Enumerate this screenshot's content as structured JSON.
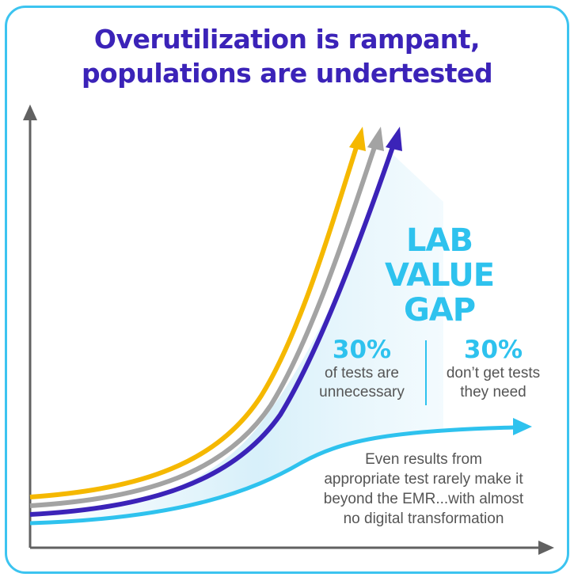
{
  "title": {
    "line1": "Overutilization is rampant,",
    "line2": "populations are undertested"
  },
  "gap_label": {
    "line1": "LAB",
    "line2": "VALUE",
    "line3": "GAP"
  },
  "stats": [
    {
      "percent": "30%",
      "line1": "of tests are",
      "line2": "unnecessary"
    },
    {
      "percent": "30%",
      "line1": "don’t get tests",
      "line2": "they need"
    }
  ],
  "note": {
    "line1": "Even results from",
    "line2": "appropriate test rarely make it",
    "line3": "beyond the EMR...with almost",
    "line4": "no digital transformation"
  },
  "colors": {
    "border": "#3cc4f0",
    "title": "#3b23b8",
    "accent_cyan": "#2ec2ee",
    "curve_yellow": "#f5b800",
    "curve_gray": "#a3a3a3",
    "curve_purple": "#3b23b8",
    "curve_cyan": "#2ec2ee",
    "axis": "#616161",
    "body_text": "#555555"
  }
}
